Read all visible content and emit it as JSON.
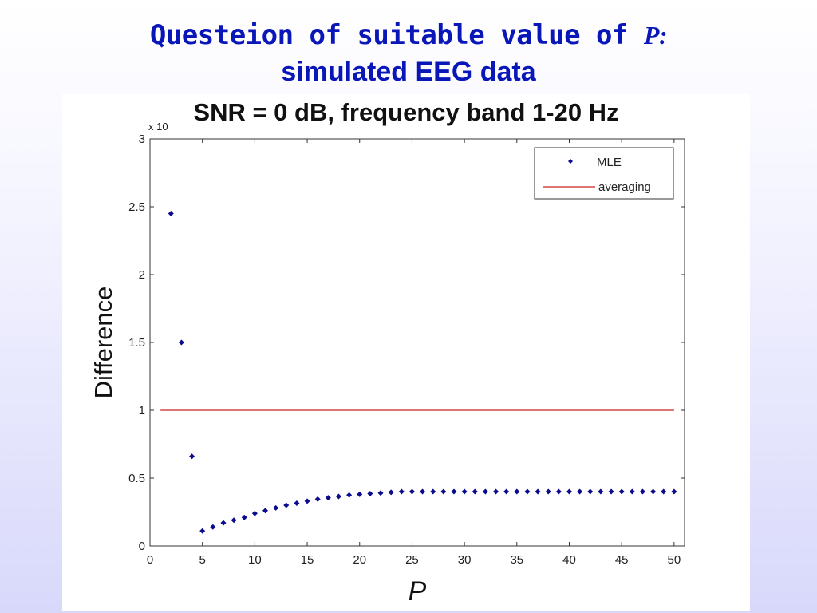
{
  "slide": {
    "title_text": "Questeion of suitable value of ",
    "title_variable": "P:",
    "subtitle": "simulated EEG data"
  },
  "colors": {
    "title": "#0a17b8",
    "mle_marker": "#0b0b8e",
    "averaging_line": "#cc2222"
  },
  "chart_data": {
    "type": "scatter",
    "title": "SNR = 0 dB, frequency band 1-20 Hz",
    "xlabel": "P",
    "ylabel": "Difference",
    "exponent_label": "x 10",
    "xlim": [
      0,
      51
    ],
    "ylim": [
      0,
      3
    ],
    "xticks": [
      0,
      5,
      10,
      15,
      20,
      25,
      30,
      35,
      40,
      45,
      50
    ],
    "yticks": [
      0,
      0.5,
      1,
      1.5,
      2,
      2.5,
      3
    ],
    "ytick_labels": [
      "0",
      "0.5",
      "1",
      "1.5",
      "2",
      "2.5",
      "3"
    ],
    "grid": false,
    "legend_position": "top-right",
    "series": [
      {
        "name": "MLE",
        "style": "markers",
        "x": [
          2,
          3,
          4,
          5,
          6,
          7,
          8,
          9,
          10,
          11,
          12,
          13,
          14,
          15,
          16,
          17,
          18,
          19,
          20,
          21,
          22,
          23,
          24,
          25,
          26,
          27,
          28,
          29,
          30,
          31,
          32,
          33,
          34,
          35,
          36,
          37,
          38,
          39,
          40,
          41,
          42,
          43,
          44,
          45,
          46,
          47,
          48,
          49,
          50
        ],
        "y": [
          2.45,
          1.5,
          0.66,
          0.11,
          0.14,
          0.17,
          0.19,
          0.21,
          0.24,
          0.26,
          0.28,
          0.3,
          0.315,
          0.33,
          0.345,
          0.355,
          0.365,
          0.375,
          0.38,
          0.385,
          0.39,
          0.395,
          0.4,
          0.4,
          0.4,
          0.4,
          0.4,
          0.4,
          0.4,
          0.4,
          0.4,
          0.4,
          0.4,
          0.4,
          0.4,
          0.4,
          0.4,
          0.4,
          0.4,
          0.4,
          0.4,
          0.4,
          0.4,
          0.4,
          0.4,
          0.4,
          0.4,
          0.4,
          0.4
        ]
      },
      {
        "name": "averaging",
        "style": "line",
        "x": [
          1,
          50
        ],
        "y": [
          1.0,
          1.0
        ]
      }
    ]
  }
}
